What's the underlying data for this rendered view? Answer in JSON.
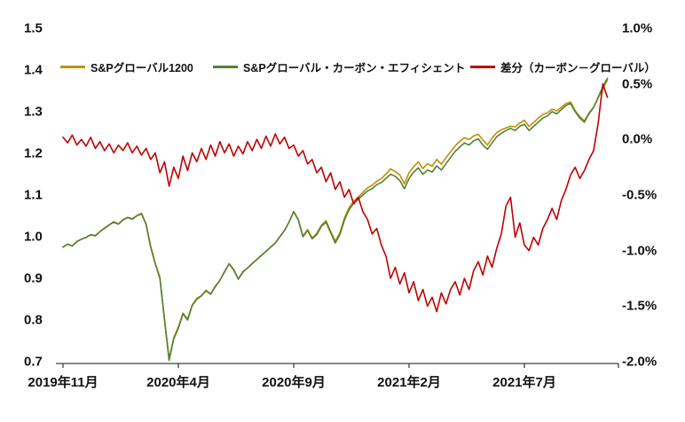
{
  "chart_data": {
    "type": "line",
    "title": "",
    "legend": {
      "position": "top"
    },
    "x_axis": {
      "tick_labels": [
        "2019年11月",
        "2020年4月",
        "2020年9月",
        "2021年2月",
        "2021年7月"
      ],
      "tick_positions_months": [
        0,
        5,
        10,
        15,
        20
      ],
      "start_month": 0,
      "step_month": 0.2,
      "end_month": 23.6
    },
    "y_axis_left": {
      "min": 0.7,
      "max": 1.5,
      "ticks": [
        "1.5",
        "1.4",
        "1.3",
        "1.2",
        "1.1",
        "1.0",
        "0.9",
        "0.8",
        "0.7"
      ],
      "tick_values": [
        1.5,
        1.4,
        1.3,
        1.2,
        1.1,
        1.0,
        0.9,
        0.8,
        0.7
      ]
    },
    "y_axis_right": {
      "min": -2.0,
      "max": 1.0,
      "ticks": [
        "1.0%",
        "0.5%",
        "0.0%",
        "-0.5%",
        "-1.0%",
        "-1.5%",
        "-2.0%"
      ],
      "tick_values": [
        1.0,
        0.5,
        0.0,
        -0.5,
        -1.0,
        -1.5,
        -2.0
      ]
    },
    "series": [
      {
        "key": "sp-global-1200",
        "name": "S&Pグローバル1200",
        "color": "#BF9000",
        "axis": "left",
        "values": [
          0.9748,
          0.9823,
          0.9776,
          0.9885,
          0.994,
          0.9986,
          1.0048,
          1.0028,
          1.0122,
          1.021,
          1.0284,
          1.0362,
          1.0305,
          1.041,
          1.0463,
          1.0432,
          1.0506,
          1.0564,
          1.0308,
          0.9768,
          0.9362,
          0.903,
          0.802,
          0.7072,
          0.7575,
          0.7835,
          0.8165,
          0.8028,
          0.8362,
          0.852,
          0.8588,
          0.8718,
          0.8625,
          0.8815,
          0.8952,
          0.9162,
          0.9354,
          0.9215,
          0.8986,
          0.9163,
          0.9252,
          0.936,
          0.945,
          0.9558,
          0.9647,
          0.9756,
          0.9845,
          1.0004,
          1.0148,
          1.0358,
          1.0605,
          1.0415,
          1.001,
          1.0172,
          0.9968,
          1.008,
          1.0275,
          1.0388,
          1.013,
          0.9895,
          1.0088,
          1.0452,
          1.0695,
          1.0858,
          1.0952,
          1.1065,
          1.1172,
          1.1235,
          1.133,
          1.1395,
          1.1505,
          1.1625,
          1.1565,
          1.148,
          1.127,
          1.1538,
          1.1678,
          1.1795,
          1.1635,
          1.175,
          1.1692,
          1.1855,
          1.1738,
          1.1898,
          1.2035,
          1.2178,
          1.229,
          1.2375,
          1.2335,
          1.2418,
          1.246,
          1.2322,
          1.2205,
          1.2365,
          1.2498,
          1.2565,
          1.261,
          1.2652,
          1.2638,
          1.2725,
          1.2795,
          1.265,
          1.2738,
          1.2845,
          1.293,
          1.2972,
          1.3062,
          1.3022,
          1.3105,
          1.3195,
          1.3232,
          1.3025,
          1.2885,
          1.2778,
          1.2968,
          1.311,
          1.3335,
          1.355,
          1.3762
        ]
      },
      {
        "key": "sp-carbon-efficient",
        "name": "S&Pグローバル・カーボン・エフィシェント",
        "color": "#538135",
        "axis": "left",
        "values": [
          0.975,
          0.982,
          0.978,
          0.988,
          0.994,
          0.998,
          1.005,
          1.002,
          1.012,
          1.02,
          1.028,
          1.035,
          1.03,
          1.04,
          1.046,
          1.042,
          1.05,
          1.055,
          1.03,
          0.975,
          0.935,
          0.9,
          0.8,
          0.703,
          0.755,
          0.78,
          0.815,
          0.8,
          0.835,
          0.85,
          0.858,
          0.87,
          0.862,
          0.88,
          0.895,
          0.915,
          0.935,
          0.92,
          0.898,
          0.915,
          0.925,
          0.935,
          0.945,
          0.955,
          0.965,
          0.975,
          0.985,
          1.0,
          1.015,
          1.035,
          1.06,
          1.04,
          1.0,
          1.015,
          0.995,
          1.005,
          1.025,
          1.035,
          1.01,
          0.985,
          1.005,
          1.04,
          1.065,
          1.08,
          1.09,
          1.1,
          1.11,
          1.115,
          1.125,
          1.13,
          1.14,
          1.15,
          1.145,
          1.135,
          1.115,
          1.14,
          1.155,
          1.165,
          1.15,
          1.16,
          1.155,
          1.17,
          1.16,
          1.175,
          1.19,
          1.205,
          1.215,
          1.225,
          1.22,
          1.23,
          1.235,
          1.22,
          1.21,
          1.225,
          1.24,
          1.248,
          1.255,
          1.26,
          1.255,
          1.265,
          1.27,
          1.255,
          1.265,
          1.275,
          1.285,
          1.29,
          1.3,
          1.295,
          1.305,
          1.315,
          1.32,
          1.3,
          1.285,
          1.275,
          1.295,
          1.31,
          1.335,
          1.36,
          1.38
        ]
      },
      {
        "key": "diff-carbon-minus-global",
        "name": "差分（カーボン－グローバル）",
        "color": "#C00000",
        "axis": "right",
        "values": [
          0.02,
          -0.03,
          0.04,
          -0.05,
          0.0,
          -0.06,
          0.02,
          -0.08,
          -0.02,
          -0.1,
          -0.04,
          -0.12,
          -0.05,
          -0.1,
          -0.03,
          -0.12,
          -0.06,
          -0.14,
          -0.08,
          -0.18,
          -0.12,
          -0.3,
          -0.2,
          -0.42,
          -0.25,
          -0.35,
          -0.15,
          -0.28,
          -0.12,
          -0.2,
          -0.08,
          -0.18,
          -0.05,
          -0.15,
          -0.02,
          -0.12,
          -0.04,
          -0.15,
          -0.06,
          -0.13,
          -0.02,
          -0.1,
          0.0,
          -0.08,
          0.03,
          -0.06,
          0.05,
          -0.04,
          0.02,
          -0.08,
          -0.05,
          -0.15,
          -0.1,
          -0.22,
          -0.18,
          -0.3,
          -0.25,
          -0.38,
          -0.3,
          -0.45,
          -0.38,
          -0.52,
          -0.45,
          -0.58,
          -0.52,
          -0.65,
          -0.72,
          -0.85,
          -0.8,
          -0.95,
          -1.05,
          -1.25,
          -1.15,
          -1.3,
          -1.2,
          -1.38,
          -1.28,
          -1.45,
          -1.35,
          -1.5,
          -1.42,
          -1.55,
          -1.38,
          -1.48,
          -1.35,
          -1.28,
          -1.4,
          -1.25,
          -1.35,
          -1.18,
          -1.1,
          -1.22,
          -1.05,
          -1.15,
          -0.98,
          -0.85,
          -0.6,
          -0.52,
          -0.88,
          -0.75,
          -0.95,
          -1.0,
          -0.88,
          -0.95,
          -0.8,
          -0.72,
          -0.62,
          -0.72,
          -0.55,
          -0.45,
          -0.32,
          -0.25,
          -0.35,
          -0.28,
          -0.18,
          -0.1,
          0.15,
          0.5,
          0.38
        ]
      }
    ],
    "axis_color": "#404040",
    "grid": "off"
  }
}
